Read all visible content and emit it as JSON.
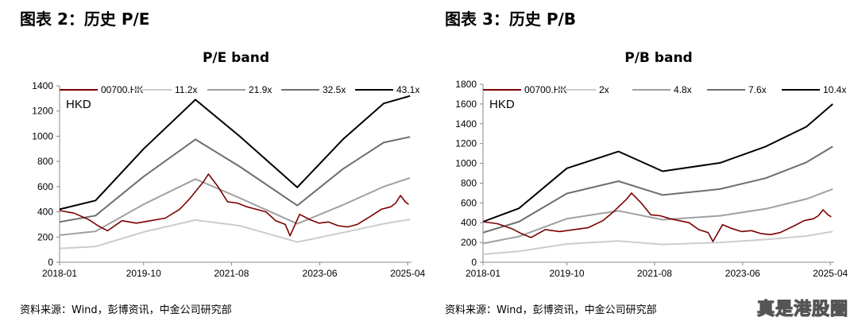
{
  "figures": [
    {
      "title": "图表 2：历史 P/E",
      "source": "资料来源：Wind，彭博资讯，中金公司研究部"
    },
    {
      "title": "图表 3：历史 P/B",
      "source": "资料来源：Wind，彭博资讯，中金公司研究部"
    }
  ],
  "watermark": "真是港股圈",
  "chart_data": [
    {
      "type": "line",
      "title": "P/E band",
      "unit_label": "HKD",
      "xlim": [
        2018.0,
        2025.33
      ],
      "ylim": [
        0,
        1400
      ],
      "y_ticks": [
        0,
        200,
        400,
        600,
        800,
        1000,
        1200,
        1400
      ],
      "x_ticks": [
        {
          "label": "2018-01",
          "x": 2018.0
        },
        {
          "label": "2019-10",
          "x": 2019.75
        },
        {
          "label": "2021-08",
          "x": 2021.58
        },
        {
          "label": "2023-06",
          "x": 2023.42
        },
        {
          "label": "2025-04",
          "x": 2025.25
        }
      ],
      "series": [
        {
          "name": "00700.HK",
          "color": "#7b0000",
          "x": [
            2018.0,
            2018.3,
            2018.6,
            2018.8,
            2019.0,
            2019.3,
            2019.6,
            2019.9,
            2020.2,
            2020.5,
            2020.7,
            2020.85,
            2021.0,
            2021.1,
            2021.3,
            2021.5,
            2021.7,
            2021.9,
            2022.1,
            2022.3,
            2022.5,
            2022.7,
            2022.8,
            2023.0,
            2023.2,
            2023.4,
            2023.6,
            2023.8,
            2024.0,
            2024.2,
            2024.5,
            2024.7,
            2024.9,
            2025.0,
            2025.1,
            2025.2,
            2025.27
          ],
          "values": [
            410,
            390,
            340,
            290,
            250,
            330,
            310,
            330,
            350,
            420,
            500,
            570,
            640,
            700,
            600,
            480,
            470,
            440,
            420,
            400,
            330,
            300,
            210,
            380,
            340,
            310,
            320,
            290,
            280,
            300,
            370,
            420,
            440,
            470,
            530,
            480,
            460
          ]
        },
        {
          "name": "11.2x",
          "color": "#cccccc",
          "x": [
            2018.0,
            2018.75,
            2019.75,
            2020.83,
            2021.75,
            2022.95,
            2023.9,
            2024.75,
            2025.3
          ],
          "values": [
            110,
            125,
            240,
            335,
            290,
            160,
            235,
            305,
            340
          ]
        },
        {
          "name": "21.9x",
          "color": "#a0a0a0",
          "x": [
            2018.0,
            2018.75,
            2019.75,
            2020.83,
            2021.75,
            2022.95,
            2023.9,
            2024.75,
            2025.3
          ],
          "values": [
            215,
            245,
            460,
            660,
            510,
            305,
            455,
            600,
            670
          ]
        },
        {
          "name": "32.5x",
          "color": "#6e6e6e",
          "x": [
            2018.0,
            2018.75,
            2019.75,
            2020.83,
            2021.75,
            2022.95,
            2023.9,
            2024.75,
            2025.3
          ],
          "values": [
            320,
            370,
            680,
            975,
            760,
            450,
            740,
            950,
            995
          ]
        },
        {
          "name": "43.1x",
          "color": "#000000",
          "x": [
            2018.0,
            2018.75,
            2019.75,
            2020.83,
            2021.75,
            2022.95,
            2023.9,
            2024.75,
            2025.3
          ],
          "values": [
            420,
            490,
            900,
            1290,
            1000,
            595,
            975,
            1260,
            1320
          ]
        }
      ]
    },
    {
      "type": "line",
      "title": "P/B band",
      "unit_label": "HKD",
      "xlim": [
        2018.0,
        2025.33
      ],
      "ylim": [
        0,
        1800
      ],
      "y_ticks": [
        0,
        200,
        400,
        600,
        800,
        1000,
        1200,
        1400,
        1600,
        1800
      ],
      "x_ticks": [
        {
          "label": "2018-01",
          "x": 2018.0
        },
        {
          "label": "2019-10",
          "x": 2019.75
        },
        {
          "label": "2021-08",
          "x": 2021.58
        },
        {
          "label": "2023-06",
          "x": 2023.42
        },
        {
          "label": "2025-04",
          "x": 2025.25
        }
      ],
      "series": [
        {
          "name": "00700.HK",
          "color": "#7b0000",
          "x": [
            2018.0,
            2018.3,
            2018.6,
            2018.8,
            2019.0,
            2019.3,
            2019.6,
            2019.9,
            2020.2,
            2020.5,
            2020.7,
            2020.85,
            2021.0,
            2021.1,
            2021.3,
            2021.5,
            2021.7,
            2021.9,
            2022.1,
            2022.3,
            2022.5,
            2022.7,
            2022.8,
            2023.0,
            2023.2,
            2023.4,
            2023.6,
            2023.8,
            2024.0,
            2024.2,
            2024.5,
            2024.7,
            2024.9,
            2025.0,
            2025.1,
            2025.2,
            2025.27
          ],
          "values": [
            410,
            390,
            340,
            290,
            250,
            330,
            310,
            330,
            350,
            420,
            500,
            570,
            640,
            700,
            600,
            480,
            470,
            440,
            420,
            400,
            330,
            300,
            210,
            380,
            340,
            310,
            320,
            290,
            280,
            300,
            370,
            420,
            440,
            470,
            530,
            480,
            460
          ]
        },
        {
          "name": "2x",
          "color": "#cccccc",
          "x": [
            2018.0,
            2018.75,
            2019.75,
            2020.83,
            2021.75,
            2022.95,
            2023.9,
            2024.75,
            2025.3
          ],
          "values": [
            80,
            110,
            185,
            215,
            180,
            200,
            230,
            265,
            310
          ]
        },
        {
          "name": "4.8x",
          "color": "#a0a0a0",
          "x": [
            2018.0,
            2018.75,
            2019.75,
            2020.83,
            2021.75,
            2022.95,
            2023.9,
            2024.75,
            2025.3
          ],
          "values": [
            190,
            260,
            440,
            520,
            430,
            470,
            540,
            640,
            740
          ]
        },
        {
          "name": "7.6x",
          "color": "#6e6e6e",
          "x": [
            2018.0,
            2018.75,
            2019.75,
            2020.83,
            2021.75,
            2022.95,
            2023.9,
            2024.75,
            2025.3
          ],
          "values": [
            300,
            410,
            695,
            820,
            680,
            740,
            850,
            1010,
            1170
          ]
        },
        {
          "name": "10.4x",
          "color": "#000000",
          "x": [
            2018.0,
            2018.75,
            2019.75,
            2020.83,
            2021.75,
            2022.95,
            2023.9,
            2024.75,
            2025.3
          ],
          "values": [
            410,
            545,
            950,
            1120,
            920,
            1005,
            1170,
            1370,
            1600
          ]
        }
      ]
    }
  ]
}
